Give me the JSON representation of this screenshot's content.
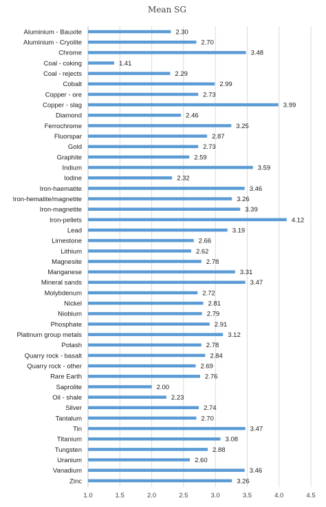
{
  "chart_data": {
    "type": "bar",
    "orientation": "horizontal",
    "title": "Mean SG",
    "xlabel": "",
    "ylabel": "",
    "xlim": [
      1.0,
      4.5
    ],
    "x_ticks": [
      "1.0",
      "1.5",
      "2.0",
      "2.5",
      "3.0",
      "3.5",
      "4.0",
      "4.5"
    ],
    "grid": true,
    "legend": "none",
    "bar_color": "#5b9bd5",
    "categories": [
      "Aluminium - Bauxite",
      "Aluminium - Cryolite",
      "Chrome",
      "Coal - coking",
      "Coal - rejects",
      "Cobalt",
      "Copper - ore",
      "Copper - slag",
      "Diamond",
      "Ferrochrome",
      "Fluorspar",
      "Gold",
      "Graphite",
      "Indium",
      "Iodine",
      "Iron-haematite",
      "Iron-hematite/magnetite",
      "Iron-magnetite",
      "Iron-pellets",
      "Lead",
      "Limestone",
      "Lithium",
      "Magnesite",
      "Manganese",
      "Mineral sands",
      "Molybdenum",
      "Nickel",
      "Niobium",
      "Phosphate",
      "Platinum group metals",
      "Potash",
      "Quarry rock - basalt",
      "Quarry rock - other",
      "Rare Earth",
      "Saprolite",
      "Oil - shale",
      "Silver",
      "Tantalum",
      "Tin",
      "Titanium",
      "Tungsten",
      "Uranium",
      "Vanadium",
      "Zinc"
    ],
    "values": [
      2.3,
      2.7,
      3.48,
      1.41,
      2.29,
      2.99,
      2.73,
      3.99,
      2.46,
      3.25,
      2.87,
      2.73,
      2.59,
      3.59,
      2.32,
      3.46,
      3.26,
      3.39,
      4.12,
      3.19,
      2.66,
      2.62,
      2.78,
      3.31,
      3.47,
      2.72,
      2.81,
      2.79,
      2.91,
      3.12,
      2.78,
      2.84,
      2.69,
      2.76,
      2.0,
      2.23,
      2.74,
      2.7,
      3.47,
      3.08,
      2.88,
      2.6,
      3.46,
      3.26
    ],
    "value_labels": [
      "2.30",
      "2.70",
      "3.48",
      "1.41",
      "2.29",
      "2.99",
      "2.73",
      "3.99",
      "2.46",
      "3.25",
      "2.87",
      "2.73",
      "2.59",
      "3.59",
      "2.32",
      "3.46",
      "3.26",
      "3.39",
      "4.12",
      "3.19",
      "2.66",
      "2.62",
      "2.78",
      "3.31",
      "3.47",
      "2.72",
      "2.81",
      "2.79",
      "2.91",
      "3.12",
      "2.78",
      "2.84",
      "2.69",
      "2.76",
      "2.00",
      "2.23",
      "2.74",
      "2.70",
      "3.47",
      "3.08",
      "2.88",
      "2.60",
      "3.46",
      "3.26"
    ]
  }
}
